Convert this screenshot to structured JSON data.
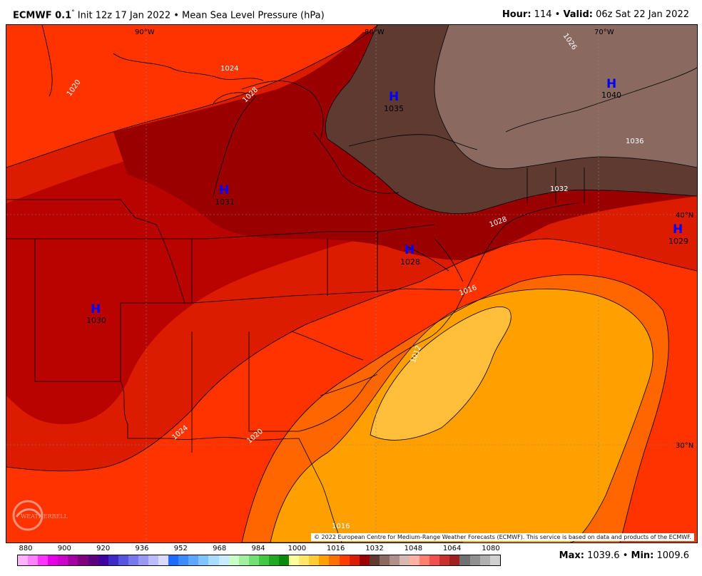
{
  "header": {
    "model": "ECMWF 0.1",
    "degree": "°",
    "init": " Init 12z 17 Jan 2022 • Mean Sea Level Pressure (hPa)",
    "hour_label": "Hour:",
    "hour": " 114 • ",
    "valid_label": "Valid:",
    "valid": " 06z Sat 22 Jan 2022"
  },
  "map": {
    "colors": {
      "p1016": "#ff9f00",
      "p1016_core": "#ffbf3a",
      "p1020": "#ff6600",
      "p1024": "#ff3300",
      "p1028": "#dc1c00",
      "p1030": "#b80300",
      "p1032": "#9a0000",
      "p1036": "#5e3a30",
      "p1040": "#8a6a60"
    },
    "systems": [
      {
        "letter": "H",
        "value": "1035"
      },
      {
        "letter": "H",
        "value": "1040"
      },
      {
        "letter": "H",
        "value": "1031"
      },
      {
        "letter": "H",
        "value": "1028"
      },
      {
        "letter": "H",
        "value": "1029"
      },
      {
        "letter": "H",
        "value": "1030"
      }
    ],
    "isobar_labels": [
      "1020",
      "1024",
      "1028",
      "1026",
      "1036",
      "1032",
      "1028",
      "1016",
      "1012",
      "1024",
      "1020",
      "1016"
    ],
    "lon_labels": [
      "90°W",
      "80°W",
      "70°W"
    ],
    "lat_labels": [
      "40°N",
      "30°N"
    ],
    "copyright": "© 2022 European Centre for Medium-Range Weather Forecasts (ECMWF). This service is based on data and products of the ECMWF.",
    "watermark": "WEATHERBELL"
  },
  "colorbar": {
    "labels": [
      "880",
      "900",
      "920",
      "936",
      "952",
      "968",
      "984",
      "1000",
      "1016",
      "1032",
      "1048",
      "1064",
      "1080"
    ],
    "colors": [
      "#ffb3ff",
      "#ff80ff",
      "#ff33ff",
      "#e600e6",
      "#cc00cc",
      "#a300a3",
      "#800080",
      "#5c0080",
      "#4000a0",
      "#3d2bc8",
      "#5555e0",
      "#7777ee",
      "#9999f5",
      "#bbbbff",
      "#dadaff",
      "#1e6bff",
      "#3c8cff",
      "#5aa8ff",
      "#7fc4ff",
      "#a8dcff",
      "#c8ecff",
      "#c8ffc8",
      "#a0f0a0",
      "#70e070",
      "#40c840",
      "#20a820",
      "#0a8a0a",
      "#ffff99",
      "#ffe666",
      "#ffcc33",
      "#ffa000",
      "#ff7000",
      "#ff3c00",
      "#dc1c00",
      "#9a0000",
      "#5e3a30",
      "#8a6a60",
      "#b0908a",
      "#d6b8b0",
      "#ffb0a0",
      "#ff8070",
      "#f05050",
      "#c83030",
      "#a02020",
      "#707070",
      "#909090",
      "#b0b0b0",
      "#d0d0d0"
    ]
  },
  "stats": {
    "max_label": "Max:",
    "max": " 1039.6",
    "sep": " • ",
    "min_label": "Min:",
    "min": " 1009.6"
  }
}
